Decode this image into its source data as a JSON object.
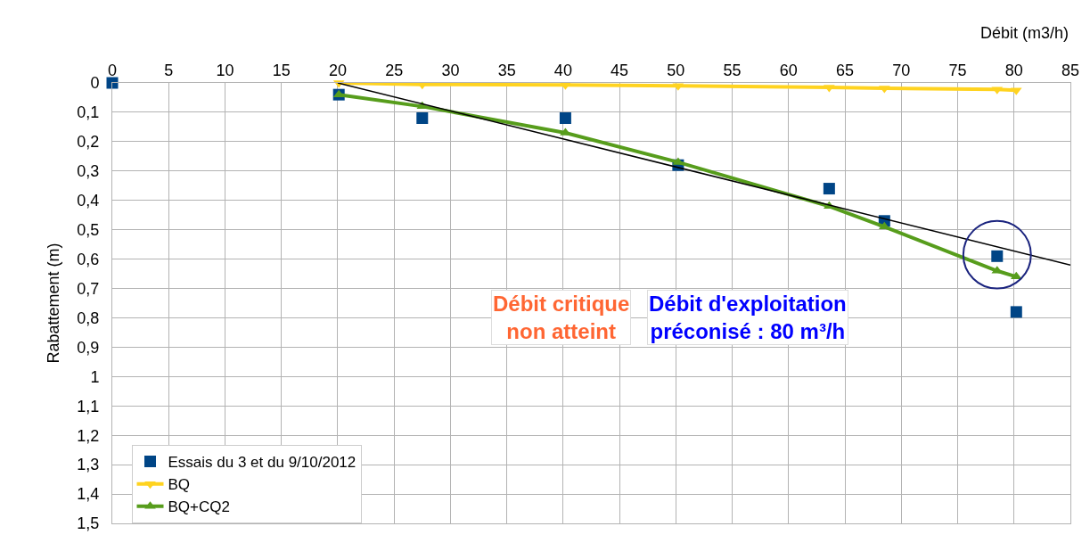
{
  "chart_data": {
    "type": "scatter",
    "xlabel": "Débit (m3/h)",
    "ylabel": "Rabattement (m)",
    "xlim": [
      0,
      85
    ],
    "xticks": [
      0,
      5,
      10,
      15,
      20,
      25,
      30,
      35,
      40,
      45,
      50,
      55,
      60,
      65,
      70,
      75,
      80,
      85
    ],
    "ylim": [
      1.5,
      0
    ],
    "yticks": [
      0,
      {
        "value": 0.1,
        "label": "0,1"
      },
      {
        "value": 0.2,
        "label": "0,2"
      },
      {
        "value": 0.3,
        "label": "0,3"
      },
      {
        "value": 0.4,
        "label": "0,4"
      },
      {
        "value": 0.5,
        "label": "0,5"
      },
      {
        "value": 0.6,
        "label": "0,6"
      },
      {
        "value": 0.7,
        "label": "0,7"
      },
      {
        "value": 0.8,
        "label": "0,8"
      },
      {
        "value": 0.9,
        "label": "0,9"
      },
      1,
      {
        "value": 1.1,
        "label": "1,1"
      },
      {
        "value": 1.2,
        "label": "1,2"
      },
      {
        "value": 1.3,
        "label": "1,3"
      },
      {
        "value": 1.4,
        "label": "1,4"
      },
      {
        "value": 1.5,
        "label": "1,5"
      }
    ],
    "grid": true,
    "legend": "bottom left",
    "series": [
      {
        "name": "Essais du 3 et du 9/10/2012",
        "marker": "square",
        "color": "#004586",
        "x": [
          0,
          20.1,
          27.5,
          40.2,
          50.2,
          63.6,
          68.5,
          78.5,
          80.2
        ],
        "values": [
          0,
          0.04,
          0.12,
          0.12,
          0.28,
          0.36,
          0.47,
          0.59,
          0.78
        ]
      },
      {
        "name": "BQ",
        "type": "line",
        "marker": "triangle-down",
        "color": "#ffd320",
        "x": [
          20.1,
          27.5,
          40.2,
          50.2,
          63.6,
          68.5,
          78.5,
          80.2
        ],
        "values": [
          0.0,
          0.005,
          0.007,
          0.01,
          0.015,
          0.018,
          0.022,
          0.025
        ]
      },
      {
        "name": "BQ+CQ2",
        "type": "line",
        "marker": "triangle",
        "color": "#579d1c",
        "x": [
          20.1,
          27.5,
          40.2,
          50.2,
          63.6,
          68.5,
          78.5,
          80.2
        ],
        "values": [
          0.04,
          0.08,
          0.17,
          0.27,
          0.42,
          0.49,
          0.64,
          0.66
        ]
      },
      {
        "type": "line",
        "marker": "none",
        "color": "#000000",
        "x": [
          20,
          85
        ],
        "values": [
          0,
          0.62
        ]
      }
    ],
    "annotations": [
      "Débit critique\nnon atteint",
      "Débit d'exploitation\npréconisé : 80 m³/h"
    ]
  }
}
